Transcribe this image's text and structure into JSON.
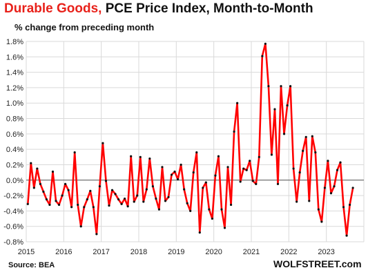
{
  "title_red": "Durable Goods,",
  "title_black": "PCE Price Index, Month-to-Month",
  "subtitle": "% change from preceding month",
  "source": "Source: BEA",
  "brand": "WOLFSTREET.com",
  "chart_data": {
    "type": "line",
    "title": "Durable Goods, PCE Price Index, Month-to-Month",
    "subtitle": "% change from preceding month",
    "ylabel": "",
    "xlabel": "",
    "ylim": [
      -0.8,
      1.8
    ],
    "yticks": [
      -0.8,
      -0.6,
      -0.4,
      -0.2,
      0.0,
      0.2,
      0.4,
      0.6,
      0.8,
      1.0,
      1.2,
      1.4,
      1.6,
      1.8
    ],
    "ytick_labels": [
      "-0.8%",
      "-0.6%",
      "-0.4%",
      "-0.2%",
      "0.0%",
      "0.2%",
      "0.4%",
      "0.6%",
      "0.8%",
      "1.0%",
      "1.2%",
      "1.4%",
      "1.6%",
      "1.8%"
    ],
    "xticks": [
      "2015",
      "2016",
      "2017",
      "2018",
      "2019",
      "2020",
      "2021",
      "2022",
      "2023"
    ],
    "x_start": "2015-01",
    "grid": true,
    "line_color": "#ff0000",
    "marker_color": "#111111",
    "series": [
      {
        "values": [
          -0.31,
          0.22,
          -0.1,
          0.15,
          -0.05,
          -0.15,
          -0.25,
          -0.32,
          0.11,
          -0.27,
          -0.32,
          -0.2,
          -0.05,
          -0.13,
          -0.35,
          0.36,
          -0.32,
          -0.6,
          -0.35,
          -0.25,
          -0.14,
          -0.35,
          -0.7,
          -0.08,
          0.48,
          -0.01,
          -0.33,
          -0.13,
          -0.18,
          -0.25,
          -0.31,
          -0.24,
          -0.34,
          0.31,
          -0.28,
          -0.2,
          0.3,
          -0.28,
          -0.12,
          0.28,
          -0.08,
          -0.24,
          -0.38,
          0.17,
          -0.27,
          -0.22,
          0.07,
          0.11,
          0.01,
          0.2,
          -0.12,
          -0.3,
          -0.4,
          0.1,
          0.36,
          -0.68,
          -0.1,
          -0.03,
          -0.38,
          -0.5,
          0.06,
          0.31,
          -0.38,
          -0.62,
          0.17,
          -0.32,
          0.63,
          1.0,
          -0.02,
          0.15,
          0.13,
          0.25,
          -0.01,
          -0.05,
          0.3,
          1.61,
          1.77,
          1.22,
          0.33,
          0.92,
          -0.05,
          1.22,
          0.6,
          0.97,
          1.22,
          0.15,
          -0.28,
          0.1,
          0.38,
          0.56,
          -0.27,
          0.57,
          0.36,
          -0.38,
          -0.54,
          -0.1,
          0.25,
          -0.17,
          -0.08,
          0.13,
          0.23,
          -0.35,
          -0.72,
          -0.32,
          -0.1
        ]
      }
    ]
  }
}
